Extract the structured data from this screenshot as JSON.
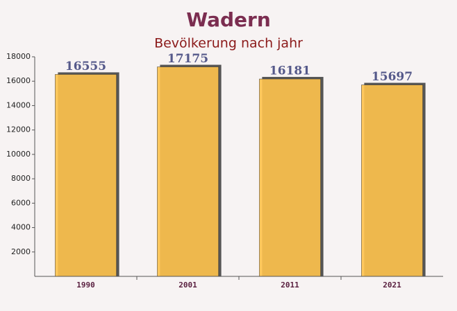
{
  "chart_data": {
    "type": "bar",
    "title": "Wadern",
    "subtitle": "Bevölkerung nach jahr",
    "categories": [
      "1990",
      "2001",
      "2011",
      "2021"
    ],
    "values": [
      16555,
      17175,
      16181,
      15697
    ],
    "color": "#ffc34d",
    "ylim": [
      0,
      18000
    ],
    "yticks": [
      2000,
      4000,
      6000,
      8000,
      10000,
      12000,
      14000,
      16000,
      18000
    ],
    "grid": false
  }
}
